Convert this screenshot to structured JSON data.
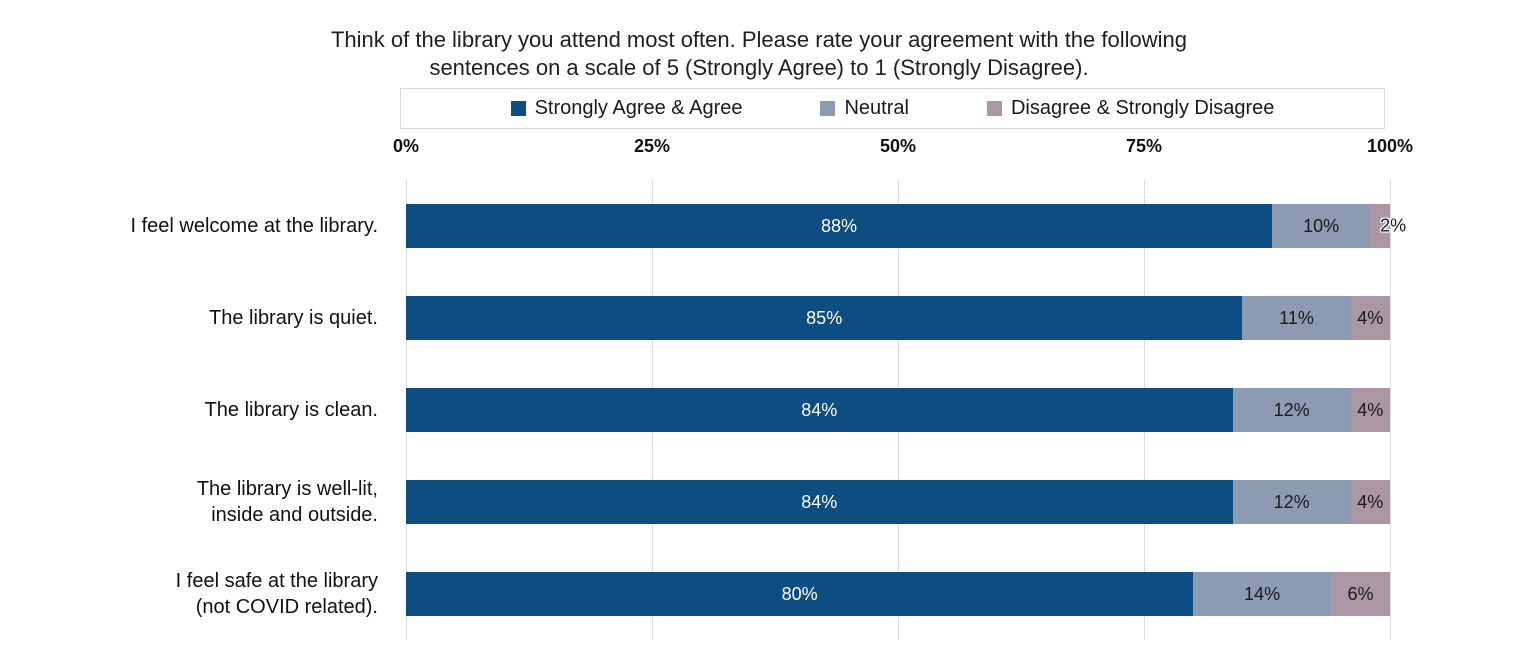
{
  "title": {
    "line1": "Think of the library you attend most often. Please rate your agreement with the following",
    "line2": "sentences on a scale of 5 (Strongly Agree) to 1 (Strongly Disagree)."
  },
  "legend": {
    "items": [
      {
        "label": "Strongly Agree & Agree",
        "color": "#0e4d82"
      },
      {
        "label": "Neutral",
        "color": "#8c9ab2"
      },
      {
        "label": "Disagree & Strongly Disagree",
        "color": "#ab96a3"
      }
    ]
  },
  "axis": {
    "ticks": [
      "0%",
      "25%",
      "50%",
      "75%",
      "100%"
    ]
  },
  "chart_data": {
    "type": "bar",
    "orientation": "horizontal",
    "stacked": true,
    "title": "Think of the library you attend most often. Please rate your agreement with the following sentences on a scale of 5 (Strongly Agree) to 1 (Strongly Disagree).",
    "xlabel": "",
    "ylabel": "",
    "xlim": [
      0,
      100
    ],
    "grid": "vertical",
    "legend_position": "top",
    "categories": [
      "I feel welcome at the library.",
      "The library is quiet.",
      "The library is clean.",
      "The library is well-lit,\ninside and outside.",
      "I feel safe at the library\n(not COVID related)."
    ],
    "series": [
      {
        "name": "Strongly Agree & Agree",
        "color": "#0e4d82",
        "label_color": "#ffffff",
        "values": [
          88,
          85,
          84,
          84,
          80
        ]
      },
      {
        "name": "Neutral",
        "color": "#8c9ab2",
        "label_color": "#1a1a1a",
        "values": [
          10,
          11,
          12,
          12,
          14
        ]
      },
      {
        "name": "Disagree & Strongly Disagree",
        "color": "#ab96a3",
        "label_color": "#1a1a1a",
        "values": [
          2,
          4,
          4,
          4,
          6
        ]
      }
    ]
  }
}
